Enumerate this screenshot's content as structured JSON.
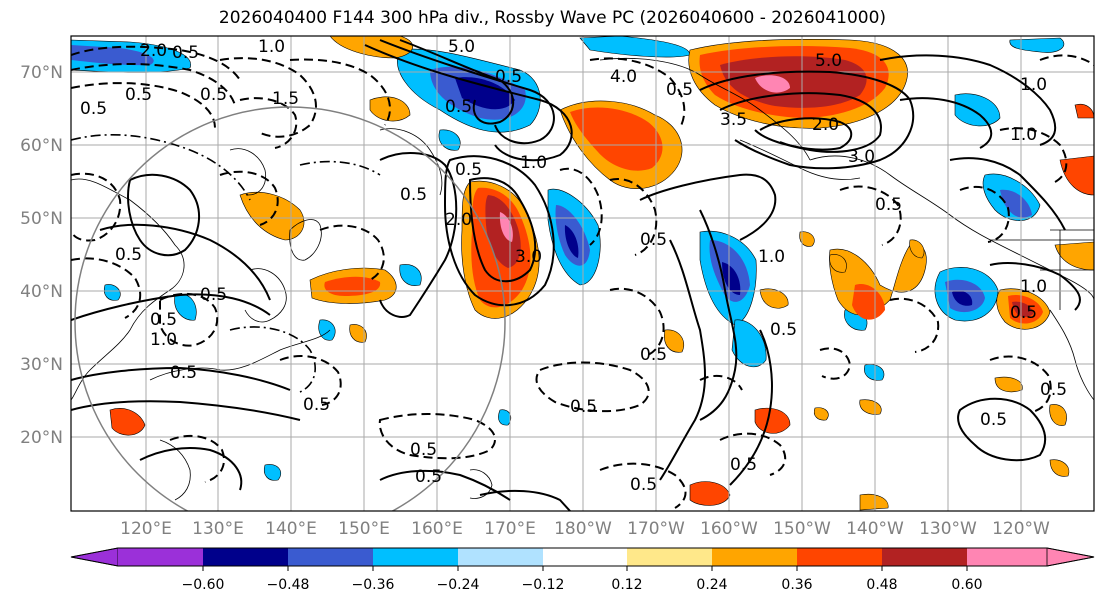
{
  "title": "2026040400 F144 300 hPa div., Rossby Wave PC (2026040600 - 2026041000)",
  "lat_labels": [
    "70°N",
    "60°N",
    "50°N",
    "40°N",
    "30°N",
    "20°N"
  ],
  "lon_labels": [
    "120°E",
    "130°E",
    "140°E",
    "150°E",
    "160°E",
    "170°E",
    "180°W",
    "170°W",
    "160°W",
    "150°W",
    "140°W",
    "130°W",
    "120°W"
  ],
  "colorbar": {
    "ticks": [
      "−0.60",
      "−0.48",
      "−0.36",
      "−0.24",
      "−0.12",
      "0.12",
      "0.24",
      "0.36",
      "0.48",
      "0.60"
    ],
    "colors": [
      "#9b30d9",
      "#00008b",
      "#3a5bd0",
      "#00bfff",
      "#b0e2ff",
      "#ffffff",
      "#ffe88a",
      "#ffa500",
      "#ff4500",
      "#b22222",
      "#ff85b3"
    ]
  },
  "contour_labels": [
    "2.0",
    "0.5",
    "0.5",
    "1.5",
    "0.5",
    "0.5",
    "1.0",
    "5.0",
    "0.5",
    "4.0",
    "0.5",
    "3.5",
    "5.0",
    "2.0",
    "1.0",
    "3.0",
    "0.5",
    "1.0",
    "0.5",
    "2.0",
    "0.5",
    "1.0",
    "3.0",
    "0.5",
    "0.5",
    "0.5",
    "0.5",
    "0.5",
    "1.0",
    "0.5",
    "1.0",
    "0.5",
    "0.5",
    "0.5",
    "0.5",
    "1.0",
    "0.5",
    "0.5",
    "0.5",
    "0.5",
    "0.5",
    "0.5",
    "0.5"
  ]
}
